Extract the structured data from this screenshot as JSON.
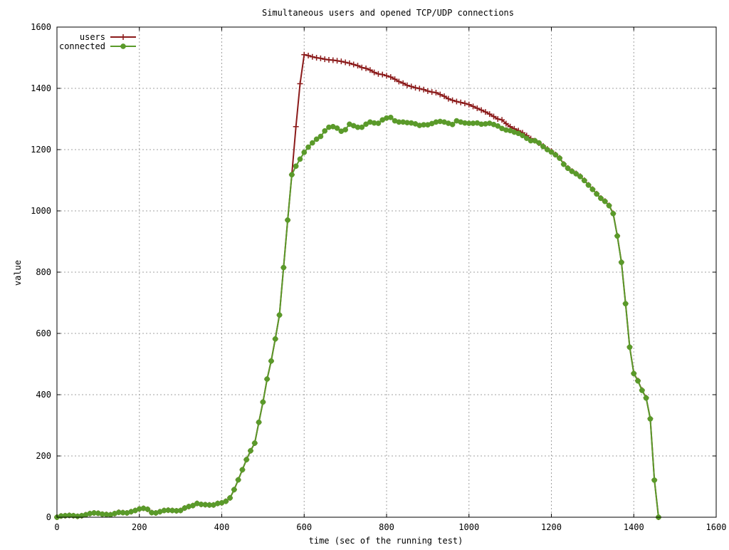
{
  "chart_data": {
    "type": "line",
    "title": "Simultaneous users and opened TCP/UDP connections",
    "xlabel": "time (sec of the running test)",
    "ylabel": "value",
    "xlim": [
      0,
      1600
    ],
    "ylim": [
      0,
      1600
    ],
    "xticks": [
      0,
      200,
      400,
      600,
      800,
      1000,
      1200,
      1400,
      1600
    ],
    "yticks": [
      0,
      200,
      400,
      600,
      800,
      1000,
      1200,
      1400,
      1600
    ],
    "grid": true,
    "legend_position": "top-left",
    "series": [
      {
        "name": "users",
        "color": "#8b1a1a",
        "marker": "plus",
        "points": [
          [
            0,
            0
          ],
          [
            10,
            4
          ],
          [
            20,
            5
          ],
          [
            30,
            6
          ],
          [
            40,
            5
          ],
          [
            50,
            3
          ],
          [
            60,
            5
          ],
          [
            70,
            8
          ],
          [
            80,
            12
          ],
          [
            90,
            14
          ],
          [
            100,
            13
          ],
          [
            110,
            10
          ],
          [
            120,
            9
          ],
          [
            130,
            8
          ],
          [
            140,
            12
          ],
          [
            150,
            16
          ],
          [
            160,
            15
          ],
          [
            170,
            14
          ],
          [
            180,
            18
          ],
          [
            190,
            22
          ],
          [
            200,
            27
          ],
          [
            210,
            29
          ],
          [
            220,
            26
          ],
          [
            230,
            15
          ],
          [
            240,
            14
          ],
          [
            250,
            18
          ],
          [
            260,
            22
          ],
          [
            270,
            23
          ],
          [
            280,
            22
          ],
          [
            290,
            21
          ],
          [
            300,
            22
          ],
          [
            310,
            30
          ],
          [
            320,
            35
          ],
          [
            330,
            38
          ],
          [
            340,
            45
          ],
          [
            350,
            42
          ],
          [
            360,
            41
          ],
          [
            370,
            40
          ],
          [
            380,
            40
          ],
          [
            390,
            45
          ],
          [
            400,
            47
          ],
          [
            410,
            52
          ],
          [
            420,
            63
          ],
          [
            430,
            90
          ],
          [
            440,
            122
          ],
          [
            450,
            155
          ],
          [
            460,
            188
          ],
          [
            470,
            217
          ],
          [
            480,
            242
          ],
          [
            490,
            310
          ],
          [
            500,
            376
          ],
          [
            510,
            451
          ],
          [
            520,
            510
          ],
          [
            530,
            582
          ],
          [
            540,
            660
          ],
          [
            550,
            815
          ],
          [
            560,
            970
          ],
          [
            570,
            1118
          ],
          [
            580,
            1275
          ],
          [
            590,
            1415
          ],
          [
            600,
            1510
          ],
          [
            610,
            1507
          ],
          [
            620,
            1503
          ],
          [
            630,
            1500
          ],
          [
            640,
            1498
          ],
          [
            650,
            1495
          ],
          [
            660,
            1493
          ],
          [
            670,
            1492
          ],
          [
            680,
            1490
          ],
          [
            690,
            1488
          ],
          [
            700,
            1485
          ],
          [
            710,
            1482
          ],
          [
            720,
            1478
          ],
          [
            730,
            1474
          ],
          [
            740,
            1468
          ],
          [
            750,
            1465
          ],
          [
            760,
            1460
          ],
          [
            770,
            1452
          ],
          [
            780,
            1447
          ],
          [
            790,
            1445
          ],
          [
            800,
            1441
          ],
          [
            810,
            1437
          ],
          [
            820,
            1430
          ],
          [
            830,
            1422
          ],
          [
            840,
            1417
          ],
          [
            850,
            1410
          ],
          [
            860,
            1406
          ],
          [
            870,
            1402
          ],
          [
            880,
            1399
          ],
          [
            890,
            1396
          ],
          [
            900,
            1391
          ],
          [
            910,
            1388
          ],
          [
            920,
            1386
          ],
          [
            930,
            1380
          ],
          [
            940,
            1374
          ],
          [
            950,
            1366
          ],
          [
            960,
            1361
          ],
          [
            970,
            1357
          ],
          [
            980,
            1354
          ],
          [
            990,
            1351
          ],
          [
            1000,
            1347
          ],
          [
            1010,
            1341
          ],
          [
            1020,
            1335
          ],
          [
            1030,
            1329
          ],
          [
            1040,
            1323
          ],
          [
            1050,
            1316
          ],
          [
            1060,
            1308
          ],
          [
            1070,
            1300
          ],
          [
            1080,
            1297
          ],
          [
            1090,
            1285
          ],
          [
            1100,
            1275
          ],
          [
            1110,
            1268
          ],
          [
            1120,
            1262
          ],
          [
            1130,
            1255
          ],
          [
            1140,
            1246
          ],
          [
            1150,
            1236
          ],
          [
            1160,
            1229
          ],
          [
            1170,
            1221
          ],
          [
            1180,
            1212
          ],
          [
            1190,
            1202
          ],
          [
            1200,
            1195
          ],
          [
            1210,
            1184
          ],
          [
            1220,
            1173
          ],
          [
            1230,
            1153
          ],
          [
            1240,
            1140
          ],
          [
            1250,
            1130
          ],
          [
            1260,
            1122
          ],
          [
            1270,
            1113
          ],
          [
            1280,
            1100
          ],
          [
            1290,
            1085
          ],
          [
            1300,
            1071
          ],
          [
            1310,
            1056
          ],
          [
            1320,
            1042
          ],
          [
            1330,
            1032
          ],
          [
            1340,
            1018
          ],
          [
            1350,
            992
          ],
          [
            1360,
            919
          ],
          [
            1370,
            833
          ],
          [
            1380,
            698
          ],
          [
            1390,
            556
          ],
          [
            1400,
            470
          ],
          [
            1410,
            446
          ],
          [
            1420,
            415
          ],
          [
            1430,
            390
          ],
          [
            1440,
            322
          ],
          [
            1450,
            122
          ],
          [
            1460,
            0
          ]
        ]
      },
      {
        "name": "connected",
        "color": "#5a9a2a",
        "marker": "filled-circle",
        "points": [
          [
            0,
            0
          ],
          [
            10,
            4
          ],
          [
            20,
            5
          ],
          [
            30,
            6
          ],
          [
            40,
            5
          ],
          [
            50,
            3
          ],
          [
            60,
            5
          ],
          [
            70,
            8
          ],
          [
            80,
            12
          ],
          [
            90,
            14
          ],
          [
            100,
            13
          ],
          [
            110,
            10
          ],
          [
            120,
            9
          ],
          [
            130,
            8
          ],
          [
            140,
            12
          ],
          [
            150,
            16
          ],
          [
            160,
            15
          ],
          [
            170,
            14
          ],
          [
            180,
            18
          ],
          [
            190,
            22
          ],
          [
            200,
            27
          ],
          [
            210,
            29
          ],
          [
            220,
            26
          ],
          [
            230,
            15
          ],
          [
            240,
            14
          ],
          [
            250,
            18
          ],
          [
            260,
            22
          ],
          [
            270,
            23
          ],
          [
            280,
            22
          ],
          [
            290,
            21
          ],
          [
            300,
            22
          ],
          [
            310,
            30
          ],
          [
            320,
            35
          ],
          [
            330,
            38
          ],
          [
            340,
            45
          ],
          [
            350,
            42
          ],
          [
            360,
            41
          ],
          [
            370,
            40
          ],
          [
            380,
            40
          ],
          [
            390,
            45
          ],
          [
            400,
            47
          ],
          [
            410,
            52
          ],
          [
            420,
            63
          ],
          [
            430,
            90
          ],
          [
            440,
            122
          ],
          [
            450,
            155
          ],
          [
            460,
            188
          ],
          [
            470,
            217
          ],
          [
            480,
            242
          ],
          [
            490,
            310
          ],
          [
            500,
            376
          ],
          [
            510,
            451
          ],
          [
            520,
            510
          ],
          [
            530,
            582
          ],
          [
            540,
            660
          ],
          [
            550,
            815
          ],
          [
            560,
            970
          ],
          [
            570,
            1118
          ],
          [
            580,
            1146
          ],
          [
            590,
            1169
          ],
          [
            600,
            1191
          ],
          [
            610,
            1208
          ],
          [
            620,
            1222
          ],
          [
            630,
            1234
          ],
          [
            640,
            1243
          ],
          [
            650,
            1261
          ],
          [
            660,
            1273
          ],
          [
            670,
            1275
          ],
          [
            680,
            1270
          ],
          [
            690,
            1260
          ],
          [
            700,
            1265
          ],
          [
            710,
            1283
          ],
          [
            720,
            1278
          ],
          [
            730,
            1273
          ],
          [
            740,
            1273
          ],
          [
            750,
            1283
          ],
          [
            760,
            1290
          ],
          [
            770,
            1287
          ],
          [
            780,
            1286
          ],
          [
            790,
            1297
          ],
          [
            800,
            1303
          ],
          [
            810,
            1305
          ],
          [
            820,
            1294
          ],
          [
            830,
            1290
          ],
          [
            840,
            1290
          ],
          [
            850,
            1288
          ],
          [
            860,
            1287
          ],
          [
            870,
            1284
          ],
          [
            880,
            1279
          ],
          [
            890,
            1281
          ],
          [
            900,
            1281
          ],
          [
            910,
            1285
          ],
          [
            920,
            1290
          ],
          [
            930,
            1292
          ],
          [
            940,
            1290
          ],
          [
            950,
            1286
          ],
          [
            960,
            1282
          ],
          [
            970,
            1294
          ],
          [
            980,
            1290
          ],
          [
            990,
            1287
          ],
          [
            1000,
            1286
          ],
          [
            1010,
            1286
          ],
          [
            1020,
            1287
          ],
          [
            1030,
            1283
          ],
          [
            1040,
            1284
          ],
          [
            1050,
            1286
          ],
          [
            1060,
            1282
          ],
          [
            1070,
            1277
          ],
          [
            1080,
            1269
          ],
          [
            1090,
            1264
          ],
          [
            1100,
            1262
          ],
          [
            1110,
            1257
          ],
          [
            1120,
            1253
          ],
          [
            1130,
            1246
          ],
          [
            1140,
            1237
          ],
          [
            1150,
            1229
          ],
          [
            1160,
            1229
          ],
          [
            1170,
            1222
          ],
          [
            1180,
            1210
          ],
          [
            1190,
            1200
          ],
          [
            1200,
            1192
          ],
          [
            1210,
            1183
          ],
          [
            1220,
            1172
          ],
          [
            1230,
            1152
          ],
          [
            1240,
            1139
          ],
          [
            1250,
            1129
          ],
          [
            1260,
            1121
          ],
          [
            1270,
            1112
          ],
          [
            1280,
            1099
          ],
          [
            1290,
            1084
          ],
          [
            1300,
            1070
          ],
          [
            1310,
            1055
          ],
          [
            1320,
            1041
          ],
          [
            1330,
            1031
          ],
          [
            1340,
            1017
          ],
          [
            1350,
            991
          ],
          [
            1360,
            918
          ],
          [
            1370,
            832
          ],
          [
            1380,
            697
          ],
          [
            1390,
            555
          ],
          [
            1400,
            469
          ],
          [
            1410,
            445
          ],
          [
            1420,
            414
          ],
          [
            1430,
            389
          ],
          [
            1440,
            321
          ],
          [
            1450,
            121
          ],
          [
            1460,
            0
          ]
        ]
      }
    ]
  }
}
